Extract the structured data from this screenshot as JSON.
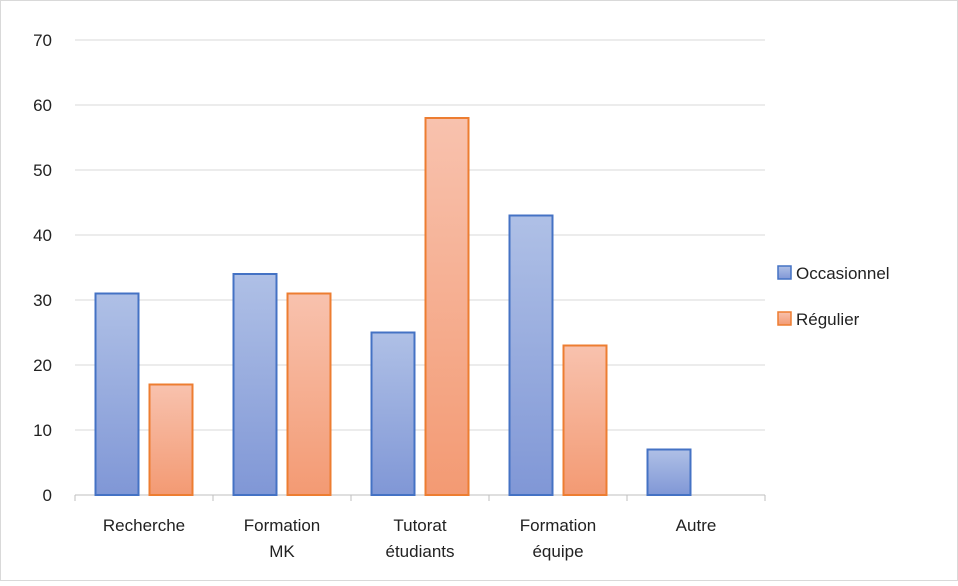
{
  "chart_data": {
    "type": "bar",
    "title": "",
    "xlabel": "",
    "ylabel": "",
    "categories": [
      [
        "Recherche"
      ],
      [
        "Formation",
        "MK"
      ],
      [
        "Tutorat",
        "étudiants"
      ],
      [
        "Formation",
        "équipe"
      ],
      [
        "Autre"
      ]
    ],
    "series": [
      {
        "name": "Occasionnel",
        "values": [
          31,
          34,
          25,
          43,
          7
        ],
        "color": "#8EA6DB",
        "stroke": "#4472C4"
      },
      {
        "name": "Régulier",
        "values": [
          17,
          31,
          58,
          23,
          null
        ],
        "color": "#F4A98C",
        "stroke": "#ED7D31"
      }
    ],
    "ylim": [
      0,
      70
    ],
    "yticks": [
      0,
      10,
      20,
      30,
      40,
      50,
      60,
      70
    ],
    "grid": true,
    "legend_position": "right"
  }
}
